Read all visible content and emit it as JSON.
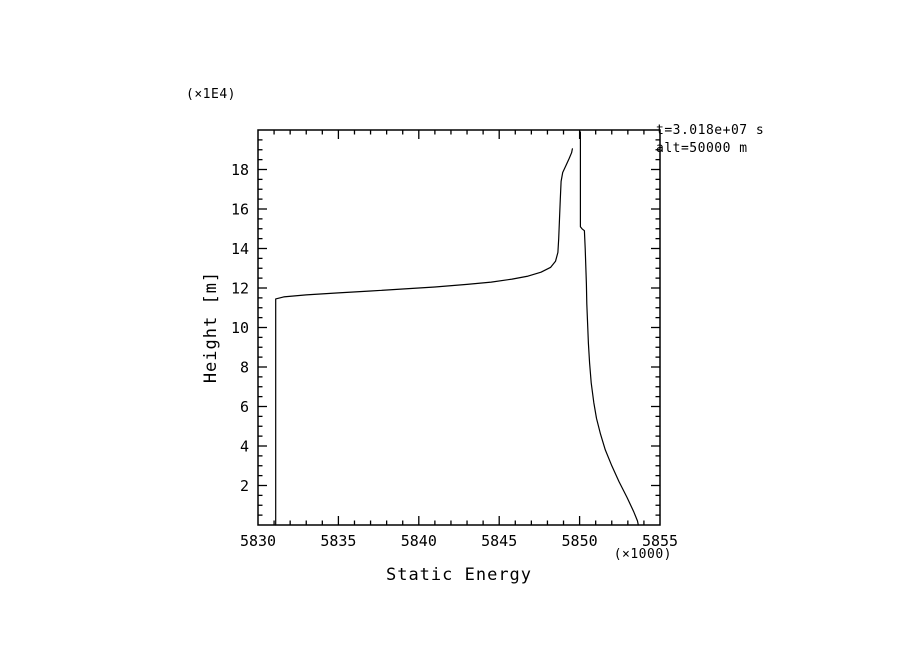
{
  "page": {
    "background": "#ffffff",
    "foreground": "#000000"
  },
  "annotations": {
    "time": "t=3.018e+07 s",
    "altitude": "alt=50000 m"
  },
  "chart_data": {
    "type": "line",
    "title": "Static Energy",
    "xlabel": "Static Energy",
    "ylabel": "Height [m]",
    "x_unit_label": "(×1000)",
    "y_unit_label": "(×1E4)",
    "xlim": [
      5830,
      5855
    ],
    "ylim": [
      0,
      20
    ],
    "x_major_ticks": [
      5830,
      5835,
      5840,
      5845,
      5850,
      5855
    ],
    "x_minor_step": 1,
    "y_major_ticks": [
      2,
      4,
      6,
      8,
      10,
      12,
      14,
      16,
      18
    ],
    "y_minor_step": 0.5,
    "grid": false,
    "legend": false,
    "color": "#000000",
    "series": [
      {
        "name": "profile-lower-left-branch",
        "points": [
          [
            5831.1,
            0
          ],
          [
            5831.1,
            11.45
          ],
          [
            5831.6,
            11.55
          ],
          [
            5833.0,
            11.65
          ],
          [
            5835.0,
            11.75
          ],
          [
            5837.0,
            11.85
          ],
          [
            5839.0,
            11.95
          ],
          [
            5841.0,
            12.05
          ],
          [
            5843.0,
            12.18
          ],
          [
            5844.5,
            12.3
          ],
          [
            5845.8,
            12.45
          ],
          [
            5846.8,
            12.6
          ],
          [
            5847.6,
            12.8
          ],
          [
            5848.2,
            13.05
          ],
          [
            5848.5,
            13.35
          ],
          [
            5848.65,
            13.8
          ],
          [
            5848.7,
            14.5
          ],
          [
            5848.75,
            15.5
          ],
          [
            5848.8,
            16.5
          ],
          [
            5848.85,
            17.4
          ],
          [
            5848.95,
            17.85
          ],
          [
            5849.15,
            18.2
          ],
          [
            5849.35,
            18.55
          ],
          [
            5849.5,
            18.85
          ],
          [
            5849.55,
            19.05
          ]
        ]
      },
      {
        "name": "profile-upper-right-branch",
        "points": [
          [
            5850.05,
            19.9
          ],
          [
            5850.05,
            15.1
          ],
          [
            5850.15,
            15.0
          ],
          [
            5850.3,
            14.9
          ],
          [
            5850.35,
            14.0
          ],
          [
            5850.4,
            12.8
          ],
          [
            5850.42,
            12.2
          ],
          [
            5850.45,
            11.2
          ],
          [
            5850.5,
            10.2
          ],
          [
            5850.55,
            9.2
          ],
          [
            5850.62,
            8.2
          ],
          [
            5850.72,
            7.2
          ],
          [
            5850.88,
            6.2
          ],
          [
            5851.05,
            5.4
          ],
          [
            5851.3,
            4.6
          ],
          [
            5851.6,
            3.8
          ],
          [
            5852.0,
            3.0
          ],
          [
            5852.45,
            2.2
          ],
          [
            5852.95,
            1.4
          ],
          [
            5853.35,
            0.7
          ],
          [
            5853.6,
            0.2
          ],
          [
            5853.65,
            0
          ]
        ]
      }
    ]
  }
}
